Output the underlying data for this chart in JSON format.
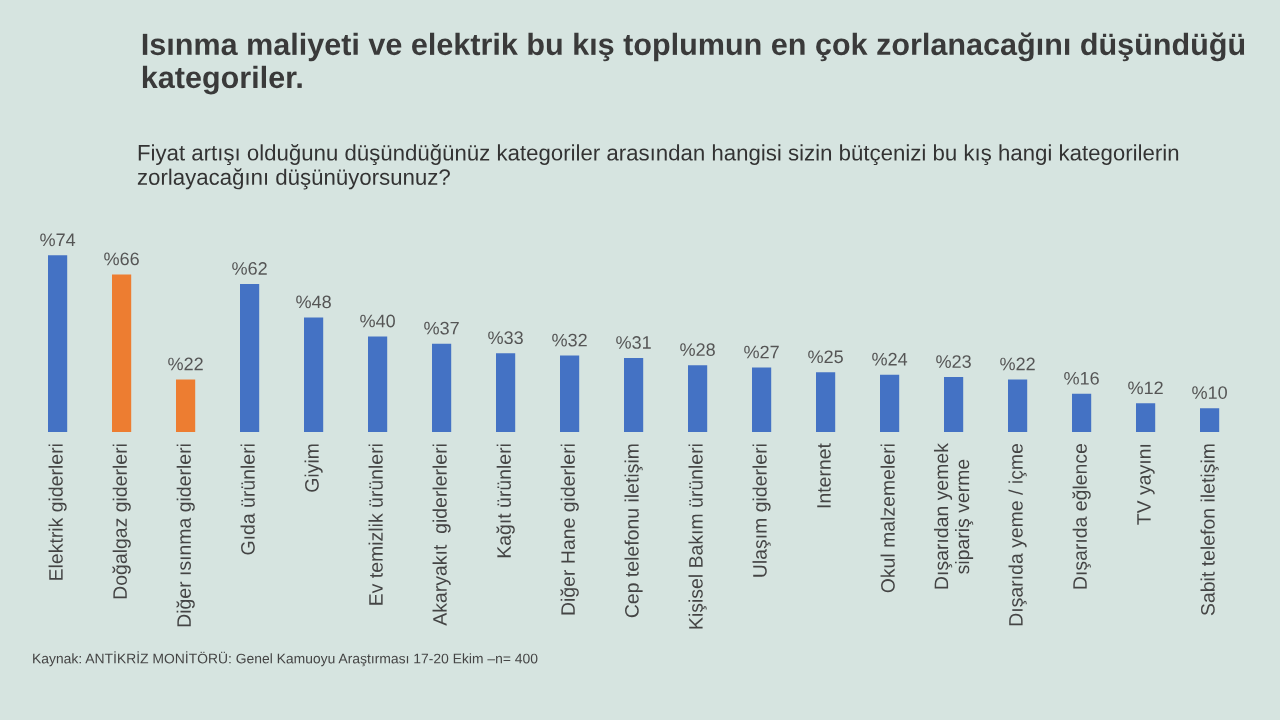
{
  "chart_data": {
    "type": "bar",
    "title": "Isınma maliyeti ve elektrik bu kış toplumun en çok zorlanacağını düşündüğü kategoriler.",
    "subtitle": "Fiyat artışı olduğunu düşündüğünüz kategoriler arasından hangisi sizin bütçenizi bu kış hangi kategorilerin zorlayacağını düşünüyorsunuz?",
    "categories": [
      "Elektrik giderleri",
      "Doğalgaz giderleri",
      "Diğer ısınma giderleri",
      "Gıda ürünleri",
      "Giyim",
      "Ev temizlik ürünleri",
      "Akaryakıt  giderlerleri",
      "Kağıt ürünleri",
      "Diğer Hane giderleri",
      "Cep telefonu iletişim",
      "Kişisel Bakım ürünleri",
      "Ulaşım giderleri",
      "Internet",
      "Okul malzemeleri",
      "Dışarıdan yemek\nsipariş verme",
      "Dışarıda yeme / içme",
      "Dışarıda eğlence",
      "TV yayını",
      "Sabit telefon iletişim"
    ],
    "values": [
      74,
      66,
      22,
      62,
      48,
      40,
      37,
      33,
      32,
      31,
      28,
      27,
      25,
      24,
      23,
      22,
      16,
      12,
      10
    ],
    "value_labels": [
      "%74",
      "%66",
      "%22",
      "%62",
      "%48",
      "%40",
      "%37",
      "%33",
      "%32",
      "%31",
      "%28",
      "%27",
      "%25",
      "%24",
      "%23",
      "%22",
      "%16",
      "%12",
      "%10"
    ],
    "colors": [
      "#4472c4",
      "#ed7d31",
      "#ed7d31",
      "#4472c4",
      "#4472c4",
      "#4472c4",
      "#4472c4",
      "#4472c4",
      "#4472c4",
      "#4472c4",
      "#4472c4",
      "#4472c4",
      "#4472c4",
      "#4472c4",
      "#4472c4",
      "#4472c4",
      "#4472c4",
      "#4472c4",
      "#4472c4"
    ],
    "annotations": [
      "Kaynak: ANTİKRİZ MONİTÖRÜ: Genel Kamuoyu Araştırması 17-20 Ekim –n= 400"
    ],
    "grid": false,
    "legend": false
  }
}
